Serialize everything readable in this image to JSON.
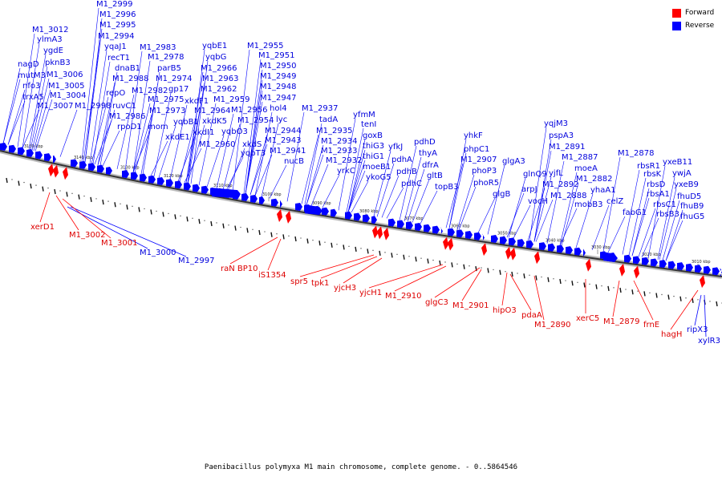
{
  "legend": {
    "forward_label": "Forward",
    "reverse_label": "Reverse",
    "forward_color": "#ff0000",
    "reverse_color": "#0000ff"
  },
  "caption": "Paenibacillus polymyxa M1 main chromosome, complete genome. - 0..5864546",
  "tick_labels": [
    "3150 kbp",
    "3140 kbp",
    "3130 kbp",
    "3120 kbp",
    "3110 kbp",
    "3100 kbp",
    "3090 kbp",
    "3080 kbp",
    "3070 kbp",
    "3060 kbp",
    "3050 kbp",
    "3040 kbp",
    "3030 kbp",
    "3020 kbp",
    "3010 kbp"
  ],
  "reverse_genes": [
    "M1_2999",
    "M1_2996",
    "M1_2995",
    "M1_2994",
    "yqaJ1",
    "recT1",
    "dnaB1",
    "M1_2988",
    "repO",
    "ruvC1",
    "M1_2986",
    "rpoD1",
    "M1_3012",
    "ylmA3",
    "ygdE",
    "pknB3",
    "nagD",
    "mutM3",
    "M1_3006",
    "nfo3",
    "M1_3005",
    "trxA5",
    "M1_3004",
    "M1_3007",
    "M1_2998",
    "M1_2983",
    "M1_2978",
    "parB5",
    "M1_2974",
    "M1_2982",
    "gp17",
    "M1_2975",
    "M1_2973",
    "mom",
    "yqbB1",
    "xkdE1",
    "yqbE1",
    "yqbG",
    "M1_2966",
    "M1_2963",
    "M1_2962",
    "xkdF1",
    "M1_2964",
    "xkdK5",
    "xkdI1",
    "M1_2960",
    "M1_2959",
    "M1_2955",
    "M1_2951",
    "M1_2950",
    "M1_2949",
    "M1_2948",
    "M1_2947",
    "hol4",
    "M1_2956",
    "M1_2954",
    "lyc",
    "yqbO3",
    "xkdS",
    "yqbT3",
    "M1_2944",
    "M1_2943",
    "M1_2941",
    "nucB",
    "M1_2937",
    "tadA",
    "M1_2935",
    "M1_2934",
    "M1_2933",
    "M1_2932",
    "yrkC",
    "yfmM",
    "tenI",
    "goxB",
    "thiG3",
    "thiG1",
    "moeB1",
    "ykoG5",
    "yfkJ",
    "pdhA",
    "pdhB",
    "pdhC",
    "pdhD",
    "thyA",
    "dfrA",
    "gltB",
    "topB3",
    "yhkF",
    "phpC1",
    "M1_2907",
    "phoP3",
    "phoR5",
    "glgA3",
    "glgB",
    "yqjM3",
    "pspA3",
    "M1_2891",
    "yjfL",
    "M1_2887",
    "moeA",
    "glnQ9",
    "arpJ",
    "vocH",
    "M1_2892",
    "M1_2888",
    "M1_2882",
    "yhaA1",
    "mobB3",
    "celZ",
    "M1_2878",
    "rbsR1",
    "rbsK",
    "rbsD",
    "rbsA1",
    "rbsC1",
    "rbsB3",
    "fabG1",
    "yxeB11",
    "ywjA",
    "yxeB9",
    "fhuD5",
    "fhuB9",
    "fhuG5",
    "M1_3000",
    "M1_2997",
    "ripX3",
    "xylR3"
  ],
  "forward_genes": [
    "xerD1",
    "M1_3002",
    "M1_3001",
    "raN BP10",
    "iS1354",
    "spr5",
    "tpk1",
    "yjcH3",
    "yjcH1",
    "M1_2910",
    "glgC3",
    "M1_2901",
    "hipO3",
    "pdaA",
    "M1_2890",
    "xerC5",
    "M1_2879",
    "frnE",
    "hagH"
  ]
}
